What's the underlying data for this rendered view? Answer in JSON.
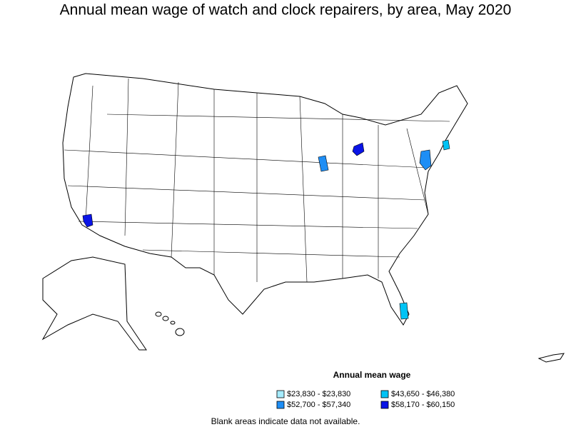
{
  "title": "Annual mean wage of watch and clock repairers, by area, May 2020",
  "legend": {
    "title": "Annual mean wage",
    "items": [
      {
        "label": "$23,830 - $23,830",
        "color": "#a6ecff"
      },
      {
        "label": "$43,650 - $46,380",
        "color": "#00c3f5"
      },
      {
        "label": "$52,700 - $57,340",
        "color": "#1e8ef5"
      },
      {
        "label": "$58,170 - $60,150",
        "color": "#0a14e6"
      }
    ]
  },
  "footnote": "Blank areas indicate data not available."
}
